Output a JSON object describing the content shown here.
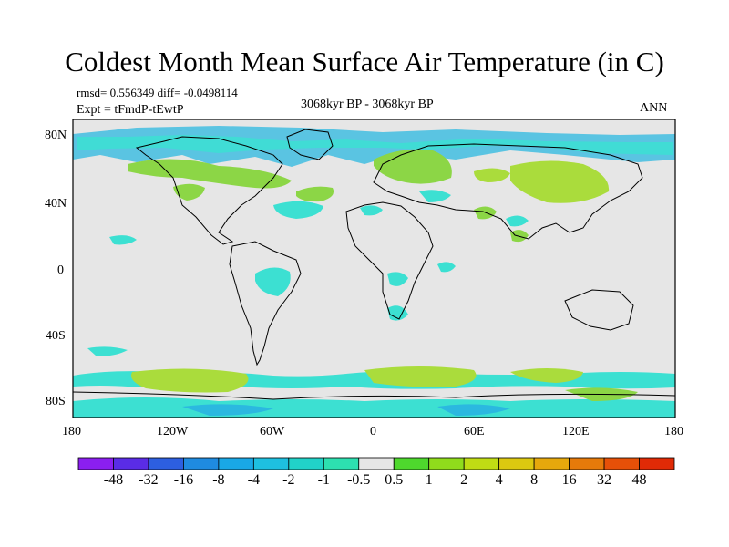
{
  "title": "Coldest Month Mean Surface Air Temperature (in C)",
  "stats": "rmsd= 0.556349  diff= -0.0498114",
  "experiment": "Expt = tFmdP-tEwtP",
  "period": "3068kyr BP - 3068kyr BP",
  "season": "ANN",
  "lat_ticks": [
    "80N",
    "40N",
    "0",
    "40S",
    "80S"
  ],
  "lon_ticks": [
    "180",
    "120W",
    "60W",
    "0",
    "60E",
    "120E",
    "180"
  ],
  "colorbar": {
    "labels": [
      "-48",
      "-32",
      "-16",
      "-8",
      "-4",
      "-2",
      "-1",
      "-0.5",
      "0.5",
      "1",
      "2",
      "4",
      "8",
      "16",
      "32",
      "48"
    ],
    "colors": [
      "#8b1ff0",
      "#5a2ce6",
      "#2d5fe0",
      "#1f8be0",
      "#19a8e6",
      "#1ec0e0",
      "#21d2c8",
      "#2de0b0",
      "#e6e6e6",
      "#4ed82d",
      "#90dc1c",
      "#c0dc14",
      "#dcc810",
      "#e6a80c",
      "#e67a0a",
      "#e65008",
      "#e02a06"
    ]
  },
  "colors": {
    "background": "#e6e6e6",
    "coast": "#000000",
    "anomaly_light_green": "#aadc3c",
    "anomaly_green": "#8cd646",
    "anomaly_cyan": "#3ce0d2",
    "anomaly_blue": "#2bb8e0"
  }
}
